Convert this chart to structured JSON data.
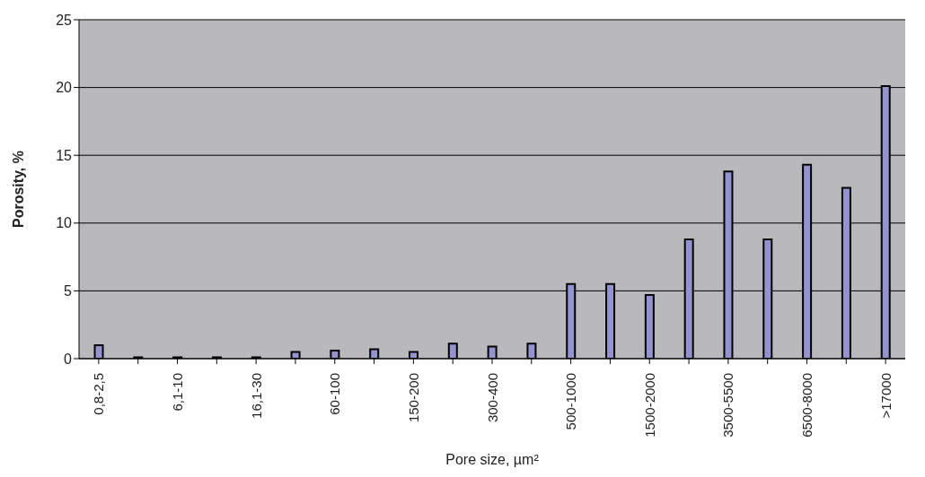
{
  "chart_data": {
    "type": "bar",
    "xlabel": "Pore size, µm²",
    "ylabel": "Porosity, %",
    "categories": [
      "0,8-2,5",
      null,
      "6,1-10",
      null,
      "16,1-30",
      null,
      "60-100",
      null,
      "150-200",
      null,
      "300-400",
      null,
      "500-1000",
      null,
      "1500-2000",
      null,
      "3500-5500",
      null,
      "6500-8000",
      null,
      ">17000"
    ],
    "values": [
      1.0,
      0.1,
      0.1,
      0.1,
      0.1,
      0.5,
      0.6,
      0.7,
      0.5,
      1.1,
      0.9,
      1.1,
      5.5,
      5.5,
      4.7,
      8.8,
      13.8,
      8.8,
      14.3,
      12.6,
      20.1
    ],
    "color": "#9393cf",
    "ylim": [
      0,
      25
    ],
    "yticks": [
      0,
      5,
      10,
      15,
      20,
      25
    ],
    "grid": "y"
  }
}
